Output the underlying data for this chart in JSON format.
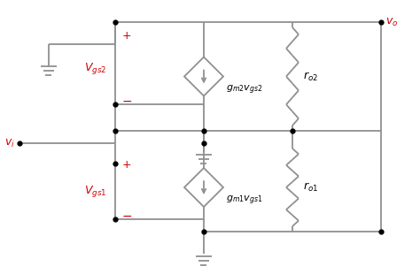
{
  "bg_color": "#ffffff",
  "line_color": "#909090",
  "red_color": "#cc0000",
  "black_color": "#000000",
  "figsize": [
    4.74,
    3.1
  ],
  "dpi": 100
}
